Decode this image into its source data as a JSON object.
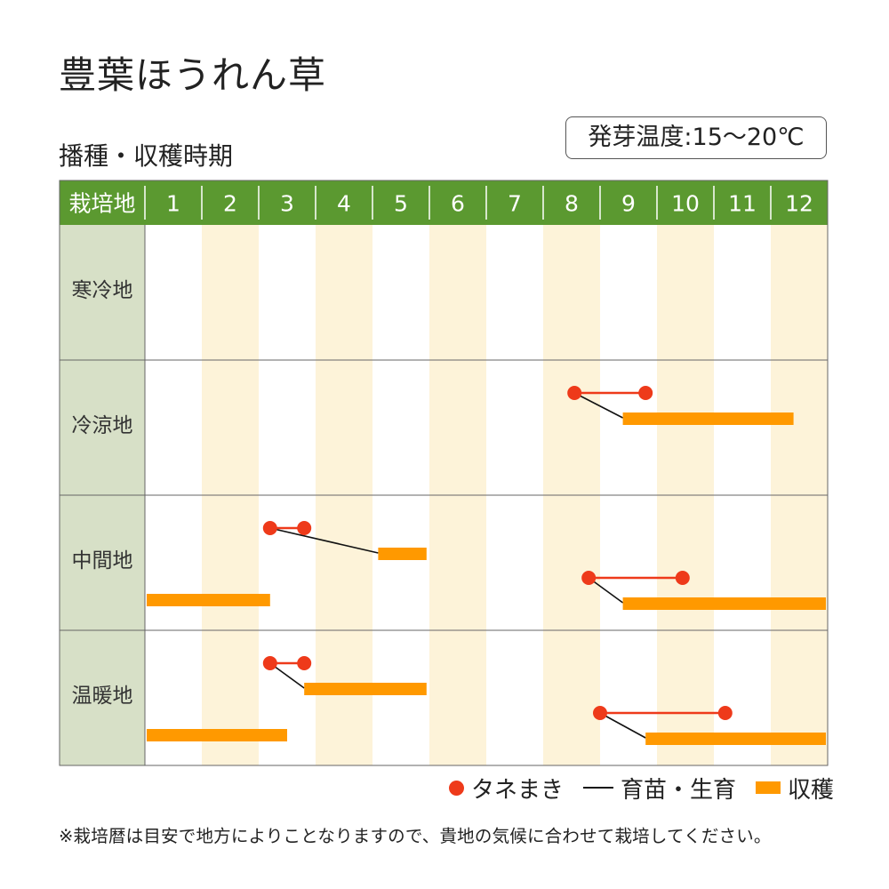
{
  "title": "豊葉ほうれん草",
  "subtitle": "播種・収穫時期",
  "germination_temp": "発芽温度:15～20℃",
  "legend": {
    "sowing": "タネまき",
    "raising": "育苗・生育",
    "harvest": "収穫"
  },
  "note": "※栽培暦は目安で地方によりことなりますので、貴地の気候に合わせて栽培してください。",
  "colors": {
    "header_green": "#5b9930",
    "region_column": "#d7e0c7",
    "alt_month_stripe": "#fdf3d9",
    "sowing_red": "#ee3a1a",
    "harvest_orange": "#ff9900",
    "grid_line": "#666666"
  },
  "chart_data": {
    "type": "gantt",
    "corner_label": "栽培地",
    "months": [
      "1",
      "2",
      "3",
      "4",
      "5",
      "6",
      "7",
      "8",
      "9",
      "10",
      "11",
      "12"
    ],
    "regions": [
      {
        "name": "寒冷地",
        "schedules": []
      },
      {
        "name": "冷涼地",
        "schedules": [
          {
            "sowing": [
              8.55,
              9.8
            ],
            "harvest": [
              9.4,
              12.4
            ]
          }
        ]
      },
      {
        "name": "中間地",
        "schedules": [
          {
            "sowing": [
              3.2,
              3.8
            ],
            "harvest": [
              5.1,
              5.95
            ]
          },
          {
            "sowing": [
              8.8,
              10.45
            ],
            "harvest": [
              9.4,
              13.0
            ]
          },
          {
            "harvest": [
              1.0,
              3.2
            ]
          }
        ]
      },
      {
        "name": "温暖地",
        "schedules": [
          {
            "sowing": [
              3.2,
              3.8
            ],
            "harvest": [
              3.8,
              5.95
            ]
          },
          {
            "sowing": [
              9.0,
              11.2
            ],
            "harvest": [
              9.8,
              13.0
            ]
          },
          {
            "harvest": [
              1.0,
              3.5
            ]
          }
        ]
      }
    ]
  }
}
